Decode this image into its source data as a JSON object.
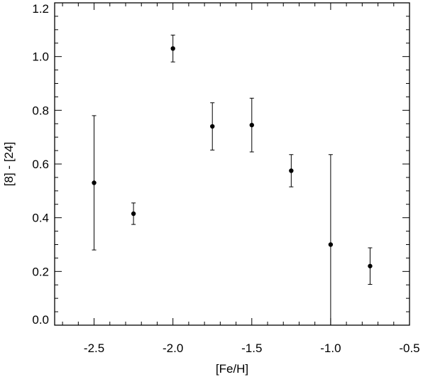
{
  "chart_data": {
    "type": "errorbar",
    "xlabel": "[Fe/H]",
    "ylabel": "[8] - [24]",
    "x": [
      -2.5,
      -2.25,
      -2.0,
      -1.75,
      -1.5,
      -1.25,
      -1.0,
      -0.75
    ],
    "y": [
      0.53,
      0.415,
      1.03,
      0.74,
      0.745,
      0.575,
      0.3,
      0.22
    ],
    "yerr": [
      0.25,
      0.04,
      0.05,
      0.088,
      0.1,
      0.06,
      0.335,
      0.068
    ],
    "color": "#000000",
    "xlim": [
      -2.75,
      -0.5
    ],
    "ylim": [
      0,
      1.2
    ],
    "xticks": [
      {
        "value": -2.5,
        "label": "-2.5"
      },
      {
        "value": -2.0,
        "label": "-2.0"
      },
      {
        "value": -1.5,
        "label": "-1.5"
      },
      {
        "value": -1.0,
        "label": "-1.0"
      },
      {
        "value": -0.5,
        "label": "-0.5"
      }
    ],
    "yticks": [
      {
        "value": 0,
        "label": "0.0"
      },
      0.2,
      0.4,
      0.6,
      0.8,
      {
        "value": 1.0,
        "label": "1.0"
      },
      1.2
    ],
    "x_minor_ticks": [
      -2.7,
      -2.6,
      -2.4,
      -2.3,
      -2.2,
      -2.1,
      -1.9,
      -1.8,
      -1.7,
      -1.6,
      -1.4,
      -1.3,
      -1.2,
      -1.1,
      -0.9,
      -0.8,
      -0.7,
      -0.6
    ],
    "y_minor_ticks": [
      0.05,
      0.1,
      0.15,
      0.25,
      0.3,
      0.35,
      0.45,
      0.5,
      0.55,
      0.65,
      0.7,
      0.75,
      0.85,
      0.9,
      0.95,
      1.05,
      1.1,
      1.15
    ]
  }
}
